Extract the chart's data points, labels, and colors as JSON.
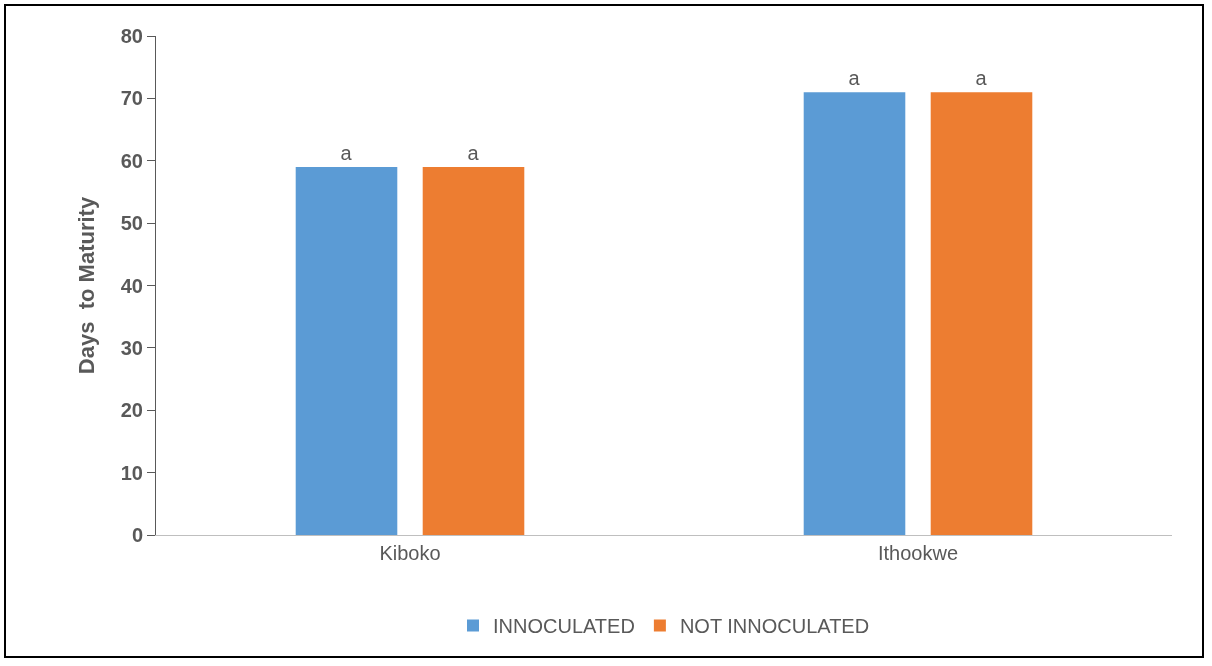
{
  "chart_data": {
    "type": "bar",
    "ylabel": "Days  to Maturity",
    "categories": [
      "Kiboko",
      "Ithookwe"
    ],
    "series": [
      {
        "name": "INNOCULATED",
        "color": "#5b9bd5",
        "values": [
          59,
          71
        ],
        "value_labels": [
          "a",
          "a"
        ]
      },
      {
        "name": "NOT INNOCULATED",
        "color": "#ed7d31",
        "values": [
          59,
          71
        ],
        "value_labels": [
          "a",
          "a"
        ]
      }
    ],
    "ylim": [
      0,
      80
    ],
    "yticks": [
      0,
      10,
      20,
      30,
      40,
      50,
      60,
      70,
      80
    ],
    "grid": false,
    "legend": "bottom"
  }
}
